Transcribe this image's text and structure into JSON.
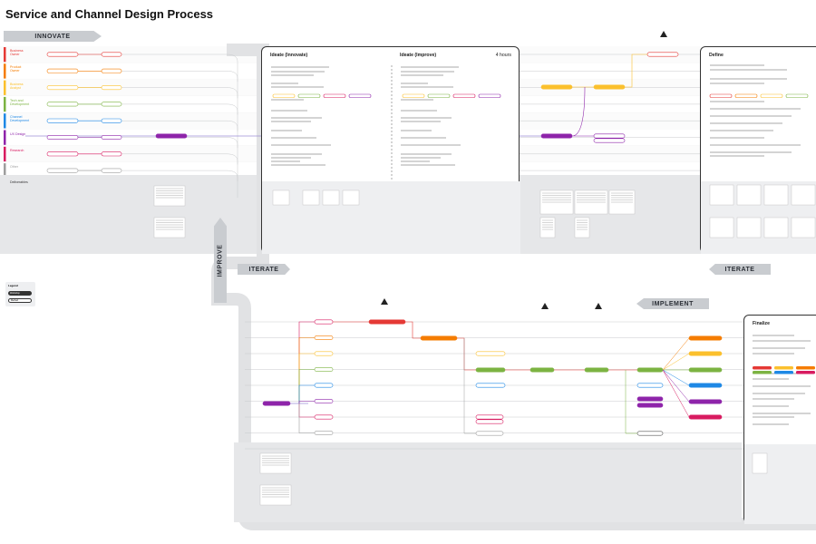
{
  "title": "Service and Channel Design Process",
  "stages": {
    "innovate": "INNOVATE",
    "iterate_left": "ITERATE",
    "iterate_right": "ITERATE",
    "implement": "IMPLEMENT",
    "improve": "IMPROVE"
  },
  "roles": [
    {
      "label": "Business Owner",
      "color": "#e53935"
    },
    {
      "label": "Product Owner",
      "color": "#f57c00"
    },
    {
      "label": "Business Analyst",
      "color": "#fbc02d"
    },
    {
      "label": "Tech and Development",
      "color": "#7cb342"
    },
    {
      "label": "Channel Development",
      "color": "#1e88e5"
    },
    {
      "label": "UX Design",
      "color": "#8e24aa"
    },
    {
      "label": "Research",
      "color": "#d81b60"
    },
    {
      "label": "Other",
      "color": "#9e9e9e"
    }
  ],
  "deliverables_row_label": "Deliverables",
  "panels": {
    "ideate_innovate": {
      "title": "Ideate (Innovate)"
    },
    "ideate_improve": {
      "title": "Ideate (Improve)",
      "duration": "4 hours"
    },
    "define": {
      "title": "Define"
    },
    "finalize": {
      "title": "Finalize"
    }
  },
  "legend": {
    "title": "Legend",
    "filled": "Workshop",
    "outline": "Method"
  },
  "colors": {
    "grey_band": "#e6e7e9",
    "track": "#c8cacc",
    "purple_track": "#9c8fd6",
    "red": "#e53935",
    "orange": "#f57c00",
    "yellow": "#fbc02d",
    "green": "#7cb342",
    "blue": "#1e88e5",
    "purple": "#8e24aa",
    "pink": "#d81b60",
    "dark": "#333333"
  }
}
